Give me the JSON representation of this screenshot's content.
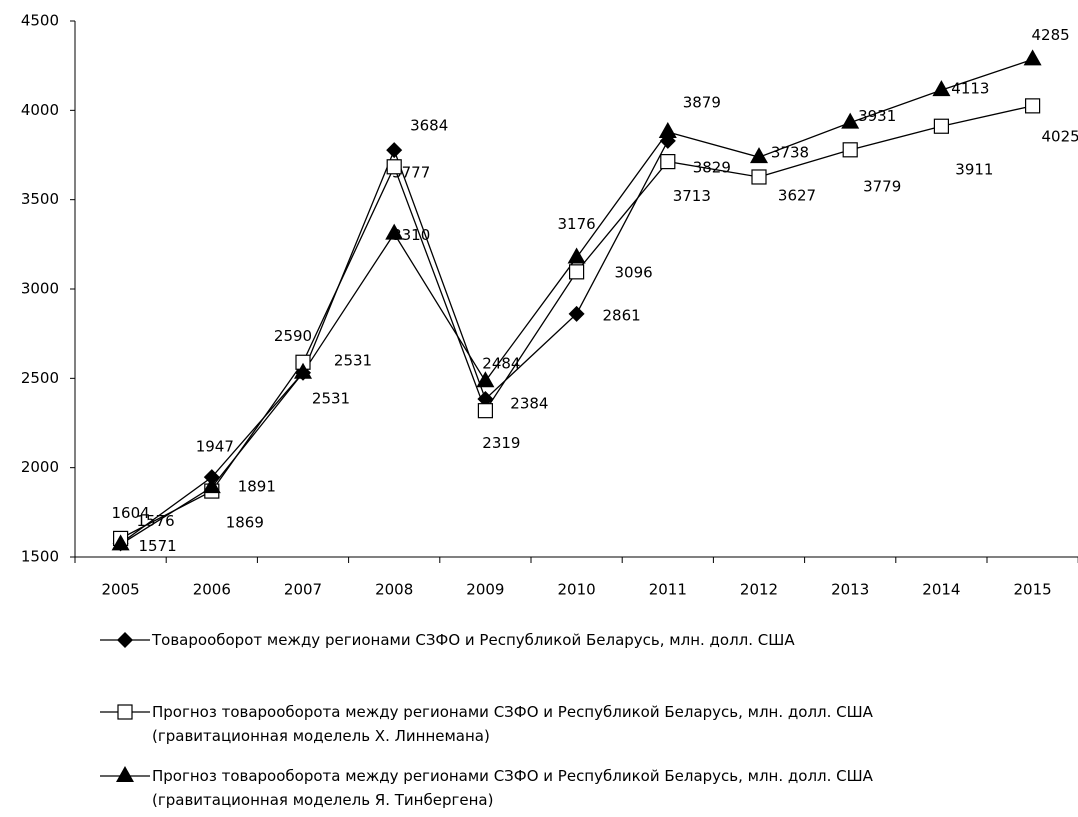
{
  "chart_data": {
    "type": "line",
    "categories": [
      "2005",
      "2006",
      "2007",
      "2008",
      "2009",
      "2010",
      "2011",
      "2012",
      "2013",
      "2014",
      "2015"
    ],
    "series": [
      {
        "name": "Товарооборот между регионами СЗФО и Республикой Беларусь, млн. долл. США",
        "color": "#000000",
        "marker": "diamond",
        "values": [
          1576,
          1947,
          2531,
          3777,
          2384,
          2861,
          3829,
          null,
          null,
          null,
          null
        ]
      },
      {
        "name": "Прогноз товарооборота между регионами СЗФО и Республикой Беларусь, млн. долл. США\n(гравитационная моделель Х. Линнемана)",
        "color": "#000000",
        "marker": "square",
        "values": [
          1604,
          1869,
          2590,
          3684,
          2319,
          3096,
          3713,
          3627,
          3779,
          3911,
          4025
        ]
      },
      {
        "name": "Прогноз товарооборота между регионами СЗФО и Республикой Беларусь, млн. долл. США\n(гравитационная моделель Я. Тинбергена)",
        "color": "#000000",
        "marker": "triangle",
        "values": [
          1571,
          1891,
          2531,
          3310,
          2484,
          3176,
          3879,
          3738,
          3931,
          4113,
          4285
        ]
      }
    ],
    "ylim": [
      1500,
      4500
    ],
    "yticks": [
      1500,
      2000,
      2500,
      3000,
      3500,
      4000,
      4500
    ],
    "grid": false,
    "legend": "bottom"
  }
}
